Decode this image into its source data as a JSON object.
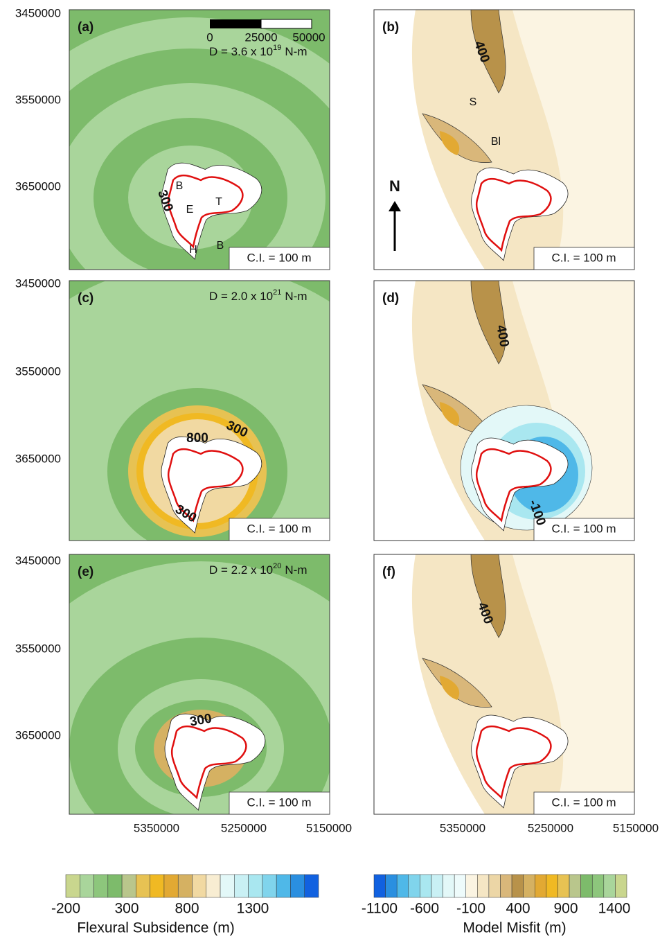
{
  "panels": [
    {
      "label": "(a)",
      "d_text": "D = 3.6 x 10",
      "d_exp": "19",
      "d_unit": "N-m",
      "ci": "C.I. = 100 m",
      "contour_labels": [
        "300"
      ],
      "place_labels": [
        "B",
        "E",
        "T",
        "H",
        "B"
      ]
    },
    {
      "label": "(b)",
      "ci": "C.I. = 100 m",
      "contour_labels": [
        "400"
      ],
      "place_labels": [
        "S",
        "Bl"
      ]
    },
    {
      "label": "(c)",
      "d_text": "D = 2.0 x 10",
      "d_exp": "21",
      "d_unit": "N-m",
      "ci": "C.I. = 100 m",
      "contour_labels": [
        "300",
        "800",
        "300"
      ]
    },
    {
      "label": "(d)",
      "ci": "C.I. = 100 m",
      "contour_labels": [
        "400",
        "-100"
      ]
    },
    {
      "label": "(e)",
      "d_text": "D = 2.2 x 10",
      "d_exp": "20",
      "d_unit": "N-m",
      "ci": "C.I. = 100 m",
      "contour_labels": [
        "300"
      ]
    },
    {
      "label": "(f)",
      "ci": "C.I. = 100 m",
      "contour_labels": [
        "400"
      ]
    }
  ],
  "y_axis_labels": [
    "3450000",
    "3550000",
    "3650000"
  ],
  "x_axis_labels": [
    "5350000",
    "5250000",
    "5150000"
  ],
  "scale_bar_labels": [
    "0",
    "25000",
    "50000"
  ],
  "north": "N",
  "colorbars": [
    {
      "title": "Flexural Subsidence (m)",
      "ticks": [
        "-200",
        "300",
        "800",
        "1300"
      ],
      "colors": [
        "#c9d68e",
        "#a9d59b",
        "#8dc67c",
        "#7dbb6b",
        "#b9c68c",
        "#e7c253",
        "#f0b923",
        "#e2a933",
        "#d5b162",
        "#f1d9a2",
        "#f8edd2",
        "#e3f8f8",
        "#c9f0f4",
        "#a9e7f0",
        "#80d4ec",
        "#4fb8e8",
        "#2a8fe0",
        "#1161e0"
      ]
    },
    {
      "title": "Model Misfit (m)",
      "ticks": [
        "-1100",
        "-600",
        "-100",
        "400",
        "900",
        "1400"
      ],
      "colors": [
        "#1161e0",
        "#2a8fe0",
        "#4fb8e8",
        "#80d4ec",
        "#a9e7f0",
        "#c9f0f4",
        "#e3f8f8",
        "#eefbfb",
        "#fbf4e2",
        "#f5e6c4",
        "#ecd6a6",
        "#d9b77a",
        "#b8924a",
        "#d5b162",
        "#e2a933",
        "#f0b923",
        "#e7c253",
        "#b9c68c",
        "#7dbb6b",
        "#8dc67c",
        "#a9d59b",
        "#c9d68e"
      ]
    }
  ]
}
